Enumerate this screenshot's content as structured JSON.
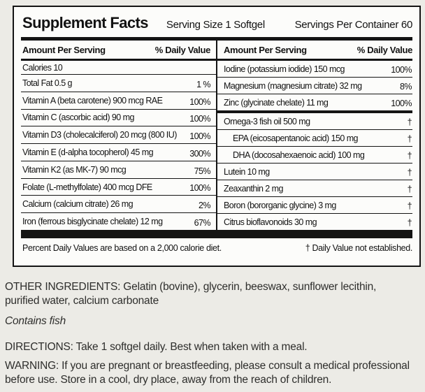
{
  "panel": {
    "title": "Supplement Facts",
    "serving_size": "Serving Size 1 Softgel",
    "servings_per_container": "Servings Per Container 60",
    "columns": {
      "amount": "Amount Per Serving",
      "daily_value": "% Daily Value"
    },
    "left_rows": [
      {
        "label": "Calories 10",
        "value": "",
        "short": true
      },
      {
        "label": "Total Fat 0.5 g",
        "value": "1 %"
      },
      {
        "label": "Vitamin A (beta carotene) 900 mcg RAE",
        "value": "100%"
      },
      {
        "label": "Vitamin C (ascorbic acid) 90 mg",
        "value": "100%"
      },
      {
        "label": "Vitamin D3 (cholecalciferol) 20 mcg (800 IU)",
        "value": "100%"
      },
      {
        "label": "Vitamin E (d-alpha tocopherol) 45 mg",
        "value": "300%"
      },
      {
        "label": "Vitamin K2 (as MK-7) 90 mcg",
        "value": "75%"
      },
      {
        "label": "Folate (L-methylfolate) 400 mcg DFE",
        "value": "100%"
      },
      {
        "label": "Calcium (calcium citrate) 26 mg",
        "value": "2%"
      },
      {
        "label": "Iron (ferrous bisglycinate chelate) 12 mg",
        "value": "67%"
      }
    ],
    "right_rows": [
      {
        "label": "Iodine (potassium iodide) 150 mcg",
        "value": "100%"
      },
      {
        "label": "Magnesium (magnesium citrate) 32 mg",
        "value": "8%"
      },
      {
        "label": "Zinc (glycinate chelate) 11 mg",
        "value": "100%",
        "thick_bottom": true
      },
      {
        "label": "Omega-3 fish oil 500 mg",
        "value": "†"
      },
      {
        "label": "EPA (eicosapentanoic acid) 150 mg",
        "value": "†",
        "indent": true
      },
      {
        "label": "DHA (docosahexaenoic acid) 100 mg",
        "value": "†",
        "indent": true
      },
      {
        "label": "Lutein 10 mg",
        "value": "†"
      },
      {
        "label": "Zeaxanthin 2 mg",
        "value": "†"
      },
      {
        "label": "Boron (bororganic glycine) 3 mg",
        "value": "†"
      },
      {
        "label": "Citrus bioflavonoids 30 mg",
        "value": "†"
      }
    ],
    "footnote_left": "Percent Daily Values are based on a 2,000 calorie diet.",
    "footnote_right": "† Daily Value not established."
  },
  "below": {
    "other_ingredients": "OTHER INGREDIENTS: Gelatin (bovine), glycerin, beeswax, sunflower lecithin, purified water, calcium carbonate",
    "contains": "Contains fish",
    "directions": "DIRECTIONS: Take 1 softgel daily. Best when taken with a meal.",
    "warning": "WARNING: If you are pregnant or breastfeeding, please consult a medical professional before use. Store in a cool, dry place, away from the reach of children."
  },
  "colors": {
    "page_background": "#ECEBE6",
    "panel_background": "#FCFCFA",
    "ink": "#141414"
  }
}
